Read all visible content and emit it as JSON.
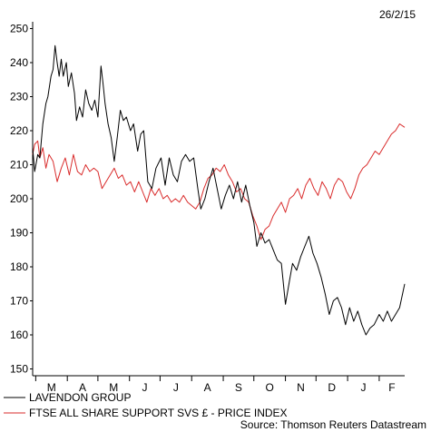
{
  "date_stamp": "26/2/15",
  "source": "Source: Thomson Reuters Datastream",
  "chart_data": {
    "type": "line",
    "title": "",
    "xlabel": "",
    "ylabel": "",
    "ylim": [
      148,
      252
    ],
    "yticks": [
      150,
      160,
      170,
      180,
      190,
      200,
      210,
      220,
      230,
      240,
      250
    ],
    "grid": false,
    "legend_position": "bottom-left",
    "categories": [
      "M",
      "A",
      "M",
      "J",
      "J",
      "A",
      "S",
      "O",
      "N",
      "D",
      "J",
      "F"
    ],
    "x_start": "2014-02-26",
    "x_end": "2015-02-26",
    "series": [
      {
        "name": "LAVENDON GROUP",
        "color": "#000000",
        "points": [
          [
            "2014-02-26",
            215
          ],
          [
            "2014-02-28",
            208
          ],
          [
            "2014-03-03",
            213
          ],
          [
            "2014-03-05",
            212
          ],
          [
            "2014-03-08",
            222
          ],
          [
            "2014-03-11",
            228
          ],
          [
            "2014-03-13",
            230
          ],
          [
            "2014-03-16",
            236
          ],
          [
            "2014-03-18",
            238
          ],
          [
            "2014-03-20",
            245
          ],
          [
            "2014-03-22",
            240
          ],
          [
            "2014-03-24",
            236
          ],
          [
            "2014-03-26",
            241
          ],
          [
            "2014-03-28",
            236
          ],
          [
            "2014-03-31",
            240
          ],
          [
            "2014-04-02",
            233
          ],
          [
            "2014-04-05",
            237
          ],
          [
            "2014-04-08",
            231
          ],
          [
            "2014-04-10",
            223
          ],
          [
            "2014-04-13",
            227
          ],
          [
            "2014-04-16",
            224
          ],
          [
            "2014-04-19",
            232
          ],
          [
            "2014-04-22",
            228
          ],
          [
            "2014-04-25",
            226
          ],
          [
            "2014-04-28",
            229
          ],
          [
            "2014-05-01",
            224
          ],
          [
            "2014-05-04",
            239
          ],
          [
            "2014-05-06",
            234
          ],
          [
            "2014-05-08",
            228
          ],
          [
            "2014-05-11",
            222
          ],
          [
            "2014-05-14",
            218
          ],
          [
            "2014-05-17",
            211
          ],
          [
            "2014-05-20",
            218
          ],
          [
            "2014-05-23",
            226
          ],
          [
            "2014-05-26",
            223
          ],
          [
            "2014-05-29",
            224
          ],
          [
            "2014-06-02",
            220
          ],
          [
            "2014-06-05",
            222
          ],
          [
            "2014-06-09",
            214
          ],
          [
            "2014-06-12",
            219
          ],
          [
            "2014-06-15",
            220
          ],
          [
            "2014-06-19",
            205
          ],
          [
            "2014-06-23",
            203
          ],
          [
            "2014-06-27",
            209
          ],
          [
            "2014-07-02",
            212
          ],
          [
            "2014-07-06",
            204
          ],
          [
            "2014-07-10",
            212
          ],
          [
            "2014-07-14",
            207
          ],
          [
            "2014-07-18",
            205
          ],
          [
            "2014-07-22",
            211
          ],
          [
            "2014-07-26",
            213
          ],
          [
            "2014-07-30",
            211
          ],
          [
            "2014-08-03",
            212
          ],
          [
            "2014-08-07",
            203
          ],
          [
            "2014-08-10",
            197
          ],
          [
            "2014-08-14",
            200
          ],
          [
            "2014-08-18",
            205
          ],
          [
            "2014-08-22",
            209
          ],
          [
            "2014-08-26",
            203
          ],
          [
            "2014-08-30",
            197
          ],
          [
            "2014-09-03",
            201
          ],
          [
            "2014-09-07",
            204
          ],
          [
            "2014-09-11",
            200
          ],
          [
            "2014-09-15",
            205
          ],
          [
            "2014-09-19",
            199
          ],
          [
            "2014-09-23",
            204
          ],
          [
            "2014-09-27",
            198
          ],
          [
            "2014-10-01",
            193
          ],
          [
            "2014-10-04",
            186
          ],
          [
            "2014-10-08",
            190
          ],
          [
            "2014-10-12",
            187
          ],
          [
            "2014-10-16",
            188
          ],
          [
            "2014-10-20",
            185
          ],
          [
            "2014-10-24",
            182
          ],
          [
            "2014-10-28",
            181
          ],
          [
            "2014-11-01",
            169
          ],
          [
            "2014-11-05",
            176
          ],
          [
            "2014-11-08",
            181
          ],
          [
            "2014-11-12",
            179
          ],
          [
            "2014-11-16",
            183
          ],
          [
            "2014-11-20",
            186
          ],
          [
            "2014-11-24",
            189
          ],
          [
            "2014-11-28",
            184
          ],
          [
            "2014-12-02",
            181
          ],
          [
            "2014-12-06",
            177
          ],
          [
            "2014-12-10",
            172
          ],
          [
            "2014-12-14",
            166
          ],
          [
            "2014-12-18",
            170
          ],
          [
            "2014-12-22",
            171
          ],
          [
            "2014-12-26",
            168
          ],
          [
            "2014-12-30",
            163
          ],
          [
            "2015-01-03",
            168
          ],
          [
            "2015-01-07",
            164
          ],
          [
            "2015-01-11",
            167
          ],
          [
            "2015-01-15",
            163
          ],
          [
            "2015-01-19",
            160
          ],
          [
            "2015-01-23",
            162
          ],
          [
            "2015-01-27",
            163
          ],
          [
            "2015-02-01",
            166
          ],
          [
            "2015-02-05",
            164
          ],
          [
            "2015-02-09",
            167
          ],
          [
            "2015-02-13",
            164
          ],
          [
            "2015-02-17",
            166
          ],
          [
            "2015-02-21",
            168
          ],
          [
            "2015-02-26",
            175
          ]
        ]
      },
      {
        "name": "FTSE ALL SHARE SUPPORT SVS £ - PRICE INDEX",
        "color": "#d92b2b",
        "points": [
          [
            "2014-02-26",
            213
          ],
          [
            "2014-02-28",
            216
          ],
          [
            "2014-03-03",
            217
          ],
          [
            "2014-03-05",
            212
          ],
          [
            "2014-03-08",
            215
          ],
          [
            "2014-03-11",
            209
          ],
          [
            "2014-03-14",
            213
          ],
          [
            "2014-03-18",
            211
          ],
          [
            "2014-03-22",
            205
          ],
          [
            "2014-03-26",
            209
          ],
          [
            "2014-03-30",
            212
          ],
          [
            "2014-04-03",
            207
          ],
          [
            "2014-04-07",
            213
          ],
          [
            "2014-04-11",
            208
          ],
          [
            "2014-04-15",
            207
          ],
          [
            "2014-04-19",
            210
          ],
          [
            "2014-04-23",
            208
          ],
          [
            "2014-04-27",
            209
          ],
          [
            "2014-05-01",
            208
          ],
          [
            "2014-05-05",
            203
          ],
          [
            "2014-05-09",
            205
          ],
          [
            "2014-05-13",
            207
          ],
          [
            "2014-05-17",
            209
          ],
          [
            "2014-05-21",
            206
          ],
          [
            "2014-05-25",
            207
          ],
          [
            "2014-05-29",
            204
          ],
          [
            "2014-06-02",
            205
          ],
          [
            "2014-06-06",
            202
          ],
          [
            "2014-06-10",
            205
          ],
          [
            "2014-06-14",
            202
          ],
          [
            "2014-06-18",
            199
          ],
          [
            "2014-06-22",
            203
          ],
          [
            "2014-06-26",
            201
          ],
          [
            "2014-06-30",
            203
          ],
          [
            "2014-07-04",
            200
          ],
          [
            "2014-07-08",
            201
          ],
          [
            "2014-07-12",
            199
          ],
          [
            "2014-07-16",
            200
          ],
          [
            "2014-07-20",
            199
          ],
          [
            "2014-07-24",
            201
          ],
          [
            "2014-07-28",
            199
          ],
          [
            "2014-08-01",
            198
          ],
          [
            "2014-08-05",
            197
          ],
          [
            "2014-08-09",
            199
          ],
          [
            "2014-08-13",
            203
          ],
          [
            "2014-08-17",
            206
          ],
          [
            "2014-08-21",
            207
          ],
          [
            "2014-08-25",
            209
          ],
          [
            "2014-08-29",
            208
          ],
          [
            "2014-09-02",
            210
          ],
          [
            "2014-09-06",
            207
          ],
          [
            "2014-09-10",
            205
          ],
          [
            "2014-09-14",
            202
          ],
          [
            "2014-09-18",
            203
          ],
          [
            "2014-09-22",
            200
          ],
          [
            "2014-09-26",
            199
          ],
          [
            "2014-09-30",
            195
          ],
          [
            "2014-10-04",
            192
          ],
          [
            "2014-10-08",
            188
          ],
          [
            "2014-10-12",
            191
          ],
          [
            "2014-10-16",
            192
          ],
          [
            "2014-10-20",
            195
          ],
          [
            "2014-10-24",
            197
          ],
          [
            "2014-10-28",
            199
          ],
          [
            "2014-11-01",
            196
          ],
          [
            "2014-11-05",
            200
          ],
          [
            "2014-11-09",
            201
          ],
          [
            "2014-11-13",
            203
          ],
          [
            "2014-11-17",
            200
          ],
          [
            "2014-11-21",
            204
          ],
          [
            "2014-11-25",
            206
          ],
          [
            "2014-11-29",
            203
          ],
          [
            "2014-12-03",
            201
          ],
          [
            "2014-12-07",
            205
          ],
          [
            "2014-12-11",
            203
          ],
          [
            "2014-12-15",
            200
          ],
          [
            "2014-12-19",
            204
          ],
          [
            "2014-12-23",
            206
          ],
          [
            "2014-12-27",
            205
          ],
          [
            "2014-12-31",
            202
          ],
          [
            "2015-01-04",
            200
          ],
          [
            "2015-01-08",
            203
          ],
          [
            "2015-01-12",
            207
          ],
          [
            "2015-01-16",
            209
          ],
          [
            "2015-01-20",
            210
          ],
          [
            "2015-01-24",
            212
          ],
          [
            "2015-01-28",
            214
          ],
          [
            "2015-02-01",
            213
          ],
          [
            "2015-02-05",
            215
          ],
          [
            "2015-02-09",
            217
          ],
          [
            "2015-02-13",
            219
          ],
          [
            "2015-02-17",
            220
          ],
          [
            "2015-02-21",
            222
          ],
          [
            "2015-02-26",
            221
          ]
        ]
      }
    ]
  }
}
